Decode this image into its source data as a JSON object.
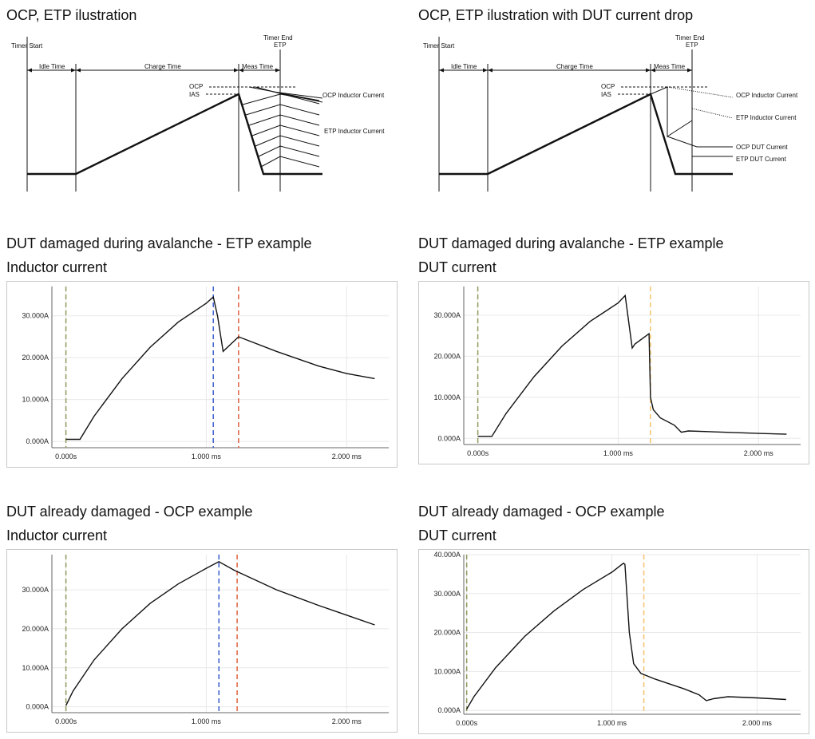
{
  "titles": {
    "ill_left": "OCP, ETP ilustration",
    "ill_right": "OCP, ETP ilustration with DUT current drop",
    "etp_left_1": "DUT damaged during avalanche - ETP example",
    "etp_left_2": "Inductor current",
    "etp_right_1": "DUT damaged during avalanche - ETP example",
    "etp_right_2": "DUT current",
    "ocp_left_1": "DUT already damaged - OCP example",
    "ocp_left_2": "Inductor current",
    "ocp_right_1": "DUT already damaged - OCP example",
    "ocp_right_2": "DUT current"
  },
  "illustration": {
    "timer_start": "Timer Start",
    "idle_time": "Idle Time",
    "charge_time": "Charge Time",
    "meas_time": "Meas Time",
    "timer_end": "Timer End",
    "etp": "ETP",
    "ocp": "OCP",
    "ias": "IAS",
    "ocp_inductor_current": "OCP Inductor Current",
    "etp_inductor_current": "ETP Inductor Current",
    "ocp_dut_current": "OCP DUT Current",
    "etp_dut_current": "ETP DUT Current"
  },
  "colors": {
    "marker_green": "#8c9a5a",
    "marker_blue": "#3a5fcd",
    "marker_red": "#e06040",
    "marker_orange": "#f5c26b",
    "trace": "#111111",
    "grid": "#e8e8e8"
  },
  "chart_data": [
    {
      "type": "line",
      "id": "etp_inductor",
      "xlim": [
        -0.1,
        2.3
      ],
      "ylim": [
        -1.5,
        37
      ],
      "yticks": [
        0,
        10,
        20,
        30
      ],
      "ytick_labels": [
        "0.000A",
        "10.000A",
        "20.000A",
        "30.000A"
      ],
      "xticks": [
        0,
        1,
        2
      ],
      "xtick_labels": [
        "0.000s",
        "1.000 ms",
        "2.000 ms"
      ],
      "x": [
        0.0,
        0.1,
        0.2,
        0.4,
        0.6,
        0.8,
        1.0,
        1.05,
        1.08,
        1.12,
        1.23,
        1.5,
        1.8,
        2.0,
        2.2
      ],
      "y": [
        0.5,
        0.5,
        6,
        15,
        22.5,
        28.5,
        33,
        34.5,
        30,
        21.5,
        25,
        21.5,
        18,
        16.2,
        15
      ],
      "markers": [
        {
          "x": 0.0,
          "color": "marker_green"
        },
        {
          "x": 1.05,
          "color": "marker_blue"
        },
        {
          "x": 1.23,
          "color": "marker_red"
        }
      ]
    },
    {
      "type": "line",
      "id": "etp_dut",
      "xlim": [
        -0.1,
        2.3
      ],
      "ylim": [
        -1.5,
        37
      ],
      "yticks": [
        0,
        10,
        20,
        30
      ],
      "ytick_labels": [
        "0.000A",
        "10.000A",
        "20.000A",
        "30.000A"
      ],
      "xticks": [
        0,
        1,
        2
      ],
      "xtick_labels": [
        "0.000s",
        "1.000 ms",
        "2.000 ms"
      ],
      "x": [
        0.0,
        0.1,
        0.2,
        0.4,
        0.6,
        0.8,
        1.0,
        1.05,
        1.1,
        1.12,
        1.22,
        1.23,
        1.25,
        1.3,
        1.4,
        1.45,
        1.5,
        2.0,
        2.2
      ],
      "y": [
        0.5,
        0.5,
        6,
        15,
        22.5,
        28.5,
        33,
        34.8,
        22,
        23,
        25.5,
        10,
        7,
        5,
        3.2,
        1.5,
        1.8,
        1.2,
        1.0
      ],
      "markers": [
        {
          "x": 0.0,
          "color": "marker_green"
        },
        {
          "x": 1.23,
          "color": "marker_orange"
        }
      ]
    },
    {
      "type": "line",
      "id": "ocp_inductor",
      "xlim": [
        -0.1,
        2.3
      ],
      "ylim": [
        -1.5,
        39
      ],
      "yticks": [
        0,
        10,
        20,
        30
      ],
      "ytick_labels": [
        "0.000A",
        "10.000A",
        "20.000A",
        "30.000A"
      ],
      "xticks": [
        0,
        1,
        2
      ],
      "xtick_labels": [
        "0.000s",
        "1.000 ms",
        "2.000 ms"
      ],
      "x": [
        0.0,
        0.05,
        0.2,
        0.4,
        0.6,
        0.8,
        1.0,
        1.09,
        1.2,
        1.5,
        1.8,
        2.0,
        2.2
      ],
      "y": [
        0.3,
        4,
        12,
        20,
        26.5,
        31.5,
        35.5,
        37.2,
        35,
        30,
        26,
        23.5,
        21
      ],
      "markers": [
        {
          "x": 0.0,
          "color": "marker_green"
        },
        {
          "x": 1.09,
          "color": "marker_blue"
        },
        {
          "x": 1.22,
          "color": "marker_red"
        }
      ]
    },
    {
      "type": "line",
      "id": "ocp_dut",
      "xlim": [
        -0.02,
        2.3
      ],
      "ylim": [
        -1,
        40
      ],
      "yticks": [
        0,
        10,
        20,
        30,
        40
      ],
      "ytick_labels": [
        "0.000A",
        "10.000A",
        "20.000A",
        "30.000A",
        "40.000A"
      ],
      "xticks": [
        0,
        1,
        2
      ],
      "xtick_labels": [
        "0.000s",
        "1.000 ms",
        "2.000 ms"
      ],
      "x": [
        0.0,
        0.05,
        0.2,
        0.4,
        0.6,
        0.8,
        1.0,
        1.08,
        1.09,
        1.12,
        1.15,
        1.2,
        1.3,
        1.5,
        1.6,
        1.65,
        1.7,
        1.8,
        2.0,
        2.2
      ],
      "y": [
        0.3,
        3.5,
        11,
        19,
        25.5,
        31,
        35.5,
        37.8,
        37.5,
        20,
        12,
        9.5,
        8,
        5.5,
        4,
        2.5,
        3.0,
        3.5,
        3.2,
        2.8
      ],
      "markers": [
        {
          "x": 0.0,
          "color": "marker_green"
        },
        {
          "x": 1.22,
          "color": "marker_orange"
        }
      ]
    }
  ]
}
